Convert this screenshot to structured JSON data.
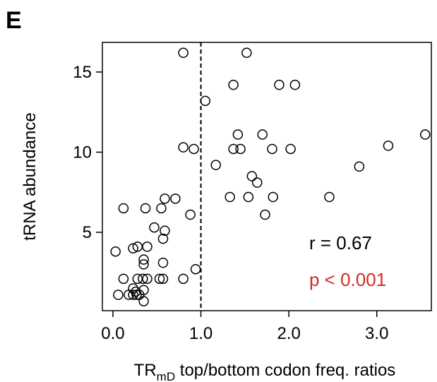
{
  "panel_label": "E",
  "chart_data": {
    "type": "scatter",
    "y_label": "tRNA abundance",
    "x_label_parts": [
      "TR",
      "mD",
      " top/bottom codon freq. ratios"
    ],
    "x": [
      0.8,
      1.52,
      1.05,
      1.37,
      1.89,
      2.07,
      1.42,
      1.7,
      3.55,
      0.8,
      0.92,
      1.37,
      1.45,
      1.81,
      2.02,
      3.13,
      2.8,
      1.17,
      1.58,
      1.64,
      0.59,
      0.71,
      1.33,
      1.54,
      1.82,
      2.46,
      1.73,
      0.88,
      0.12,
      0.37,
      0.55,
      0.47,
      0.59,
      0.57,
      0.23,
      0.28,
      0.39,
      0.03,
      0.57,
      0.35,
      0.35,
      0.94,
      0.12,
      0.28,
      0.34,
      0.39,
      0.53,
      0.57,
      0.8,
      0.23,
      0.26,
      0.35,
      0.06,
      0.18,
      0.27,
      0.3,
      0.35,
      0.23
    ],
    "y": [
      16.2,
      16.2,
      13.2,
      14.2,
      14.2,
      14.2,
      11.1,
      11.1,
      11.1,
      10.3,
      10.2,
      10.2,
      10.2,
      10.2,
      10.2,
      10.4,
      9.1,
      9.2,
      8.5,
      8.1,
      7.1,
      7.1,
      7.2,
      7.2,
      7.2,
      7.2,
      6.1,
      6.1,
      6.5,
      6.5,
      6.5,
      5.3,
      5.1,
      4.6,
      4.0,
      4.1,
      4.1,
      3.8,
      3.1,
      3.3,
      3.0,
      2.7,
      2.1,
      2.1,
      2.1,
      2.1,
      2.1,
      2.1,
      2.1,
      1.5,
      1.3,
      1.4,
      1.1,
      1.1,
      1.1,
      1.1,
      0.7,
      1.1
    ],
    "color": "#000000",
    "xlim": [
      -0.12,
      3.62
    ],
    "ylim": [
      0.11,
      16.85
    ],
    "xticks": [
      {
        "value": 0,
        "label": "0.0"
      },
      {
        "value": 1,
        "label": "1.0"
      },
      {
        "value": 2,
        "label": "2.0"
      },
      {
        "value": 3,
        "label": "3.0"
      }
    ],
    "yticks": [
      5,
      10,
      15
    ],
    "vline": 1,
    "annotations": [
      {
        "text": "r = 0.67",
        "color": "#000000"
      },
      {
        "text": "p < 0.001",
        "color": "#d42a2a"
      }
    ]
  }
}
